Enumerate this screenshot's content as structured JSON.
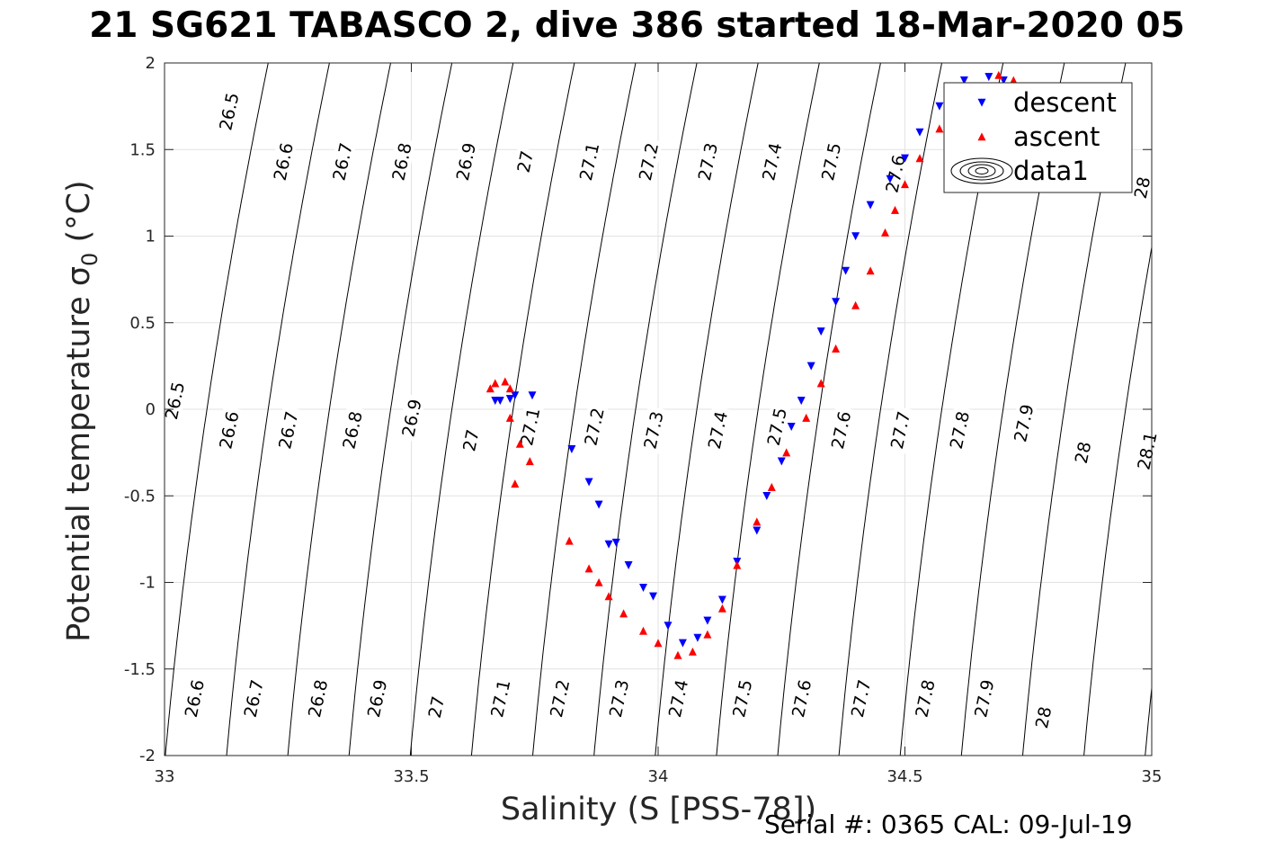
{
  "title": "21 SG621 TABASCO 2, dive 386 started 18-Mar-2020 05",
  "footer": {
    "serial": "Serial #: 0365  CAL: 09-Jul-19"
  },
  "chart_data": {
    "type": "scatter",
    "title": "21 SG621 TABASCO 2, dive 386 started 18-Mar-2020 05",
    "xlabel": "Salinity (S [PSS-78])",
    "ylabel_main": "Potential temperature ",
    "ylabel_sigma": "σ",
    "ylabel_sub": "0",
    "ylabel_unit": " (°C)",
    "xlim": [
      33,
      35
    ],
    "ylim": [
      -2,
      2
    ],
    "xticks": [
      33,
      33.5,
      34,
      34.5,
      35
    ],
    "yticks": [
      -2,
      -1.5,
      -1,
      -0.5,
      0,
      0.5,
      1,
      1.5,
      2
    ],
    "xtick_labels": [
      "33",
      "33.5",
      "34",
      "34.5",
      "35"
    ],
    "ytick_labels": [
      "-2",
      "-1.5",
      "-1",
      "-0.5",
      "0",
      "0.5",
      "1",
      "1.5",
      "2"
    ],
    "grid": true,
    "legend_position": "top-right",
    "legend": [
      {
        "label": "descent",
        "marker": "down-triangle",
        "color": "#0000ff"
      },
      {
        "label": "ascent",
        "marker": "up-triangle",
        "color": "#ff0000"
      },
      {
        "label": "data1",
        "marker": "contour",
        "color": "#000000"
      }
    ],
    "contour_levels": [
      26.5,
      26.6,
      26.7,
      26.8,
      26.9,
      27,
      27.1,
      27.2,
      27.3,
      27.4,
      27.5,
      27.6,
      27.7,
      27.8,
      27.9,
      28,
      28.1
    ],
    "contour_labels": {
      "top": [
        {
          "t": "26.5",
          "s": 33.13,
          "th": 1.72
        },
        {
          "t": "26.6",
          "s": 33.24,
          "th": 1.43
        },
        {
          "t": "26.7",
          "s": 33.36,
          "th": 1.43
        },
        {
          "t": "26.8",
          "s": 33.48,
          "th": 1.43
        },
        {
          "t": "26.9",
          "s": 33.61,
          "th": 1.43
        },
        {
          "t": "27",
          "s": 33.73,
          "th": 1.43
        },
        {
          "t": "27.1",
          "s": 33.86,
          "th": 1.43
        },
        {
          "t": "27.2",
          "s": 33.98,
          "th": 1.43
        },
        {
          "t": "27.3",
          "s": 34.1,
          "th": 1.43
        },
        {
          "t": "27.4",
          "s": 34.23,
          "th": 1.43
        },
        {
          "t": "27.5",
          "s": 34.35,
          "th": 1.43
        },
        {
          "t": "27.6",
          "s": 34.48,
          "th": 1.36
        },
        {
          "t": "28",
          "s": 34.98,
          "th": 1.28
        }
      ],
      "middle": [
        {
          "t": "26.5",
          "s": 33.02,
          "th": 0.05
        },
        {
          "t": "26.6",
          "s": 33.13,
          "th": -0.12
        },
        {
          "t": "26.7",
          "s": 33.25,
          "th": -0.12
        },
        {
          "t": "26.8",
          "s": 33.38,
          "th": -0.12
        },
        {
          "t": "26.9",
          "s": 33.5,
          "th": -0.05
        },
        {
          "t": "27",
          "s": 33.62,
          "th": -0.18
        },
        {
          "t": "27.1",
          "s": 33.74,
          "th": -0.1
        },
        {
          "t": "27.2",
          "s": 33.87,
          "th": -0.1
        },
        {
          "t": "27.3",
          "s": 33.99,
          "th": -0.12
        },
        {
          "t": "27.4",
          "s": 34.12,
          "th": -0.12
        },
        {
          "t": "27.5",
          "s": 34.24,
          "th": -0.1
        },
        {
          "t": "27.6",
          "s": 34.37,
          "th": -0.12
        },
        {
          "t": "27.7",
          "s": 34.49,
          "th": -0.12
        },
        {
          "t": "27.8",
          "s": 34.61,
          "th": -0.12
        },
        {
          "t": "27.9",
          "s": 34.74,
          "th": -0.08
        },
        {
          "t": "28",
          "s": 34.86,
          "th": -0.25
        },
        {
          "t": "28.1",
          "s": 34.99,
          "th": -0.24
        }
      ],
      "bottom": [
        {
          "t": "26.6",
          "s": 33.06,
          "th": -1.67
        },
        {
          "t": "26.7",
          "s": 33.18,
          "th": -1.67
        },
        {
          "t": "26.8",
          "s": 33.31,
          "th": -1.67
        },
        {
          "t": "26.9",
          "s": 33.43,
          "th": -1.67
        },
        {
          "t": "27",
          "s": 33.55,
          "th": -1.72
        },
        {
          "t": "27.1",
          "s": 33.68,
          "th": -1.67
        },
        {
          "t": "27.2",
          "s": 33.8,
          "th": -1.67
        },
        {
          "t": "27.3",
          "s": 33.92,
          "th": -1.67
        },
        {
          "t": "27.4",
          "s": 34.04,
          "th": -1.67
        },
        {
          "t": "27.5",
          "s": 34.17,
          "th": -1.67
        },
        {
          "t": "27.6",
          "s": 34.29,
          "th": -1.67
        },
        {
          "t": "27.7",
          "s": 34.41,
          "th": -1.67
        },
        {
          "t": "27.8",
          "s": 34.54,
          "th": -1.67
        },
        {
          "t": "27.9",
          "s": 34.66,
          "th": -1.67
        },
        {
          "t": "28",
          "s": 34.78,
          "th": -1.78
        }
      ]
    },
    "series": [
      {
        "name": "descent",
        "marker": "down-triangle",
        "color": "#0000ff",
        "points": [
          [
            33.67,
            0.05
          ],
          [
            33.68,
            0.05
          ],
          [
            33.7,
            0.06
          ],
          [
            33.71,
            0.08
          ],
          [
            33.745,
            0.08
          ],
          [
            33.825,
            -0.23
          ],
          [
            33.86,
            -0.42
          ],
          [
            33.88,
            -0.55
          ],
          [
            33.9,
            -0.78
          ],
          [
            33.915,
            -0.77
          ],
          [
            33.94,
            -0.9
          ],
          [
            33.97,
            -1.03
          ],
          [
            33.99,
            -1.08
          ],
          [
            34.02,
            -1.25
          ],
          [
            34.05,
            -1.35
          ],
          [
            34.08,
            -1.32
          ],
          [
            34.1,
            -1.22
          ],
          [
            34.13,
            -1.1
          ],
          [
            34.16,
            -0.88
          ],
          [
            34.2,
            -0.7
          ],
          [
            34.22,
            -0.5
          ],
          [
            34.25,
            -0.3
          ],
          [
            34.27,
            -0.1
          ],
          [
            34.29,
            0.05
          ],
          [
            34.31,
            0.25
          ],
          [
            34.33,
            0.45
          ],
          [
            34.36,
            0.62
          ],
          [
            34.38,
            0.8
          ],
          [
            34.4,
            1.0
          ],
          [
            34.43,
            1.18
          ],
          [
            34.47,
            1.33
          ],
          [
            34.5,
            1.45
          ],
          [
            34.53,
            1.6
          ],
          [
            34.57,
            1.75
          ],
          [
            34.62,
            1.9
          ],
          [
            34.67,
            1.92
          ],
          [
            34.7,
            1.9
          ]
        ]
      },
      {
        "name": "ascent",
        "marker": "up-triangle",
        "color": "#ff0000",
        "points": [
          [
            33.66,
            0.12
          ],
          [
            33.67,
            0.15
          ],
          [
            33.69,
            0.16
          ],
          [
            33.7,
            0.12
          ],
          [
            33.7,
            -0.05
          ],
          [
            33.72,
            -0.2
          ],
          [
            33.74,
            -0.3
          ],
          [
            33.71,
            -0.43
          ],
          [
            33.82,
            -0.76
          ],
          [
            33.86,
            -0.92
          ],
          [
            33.88,
            -1.0
          ],
          [
            33.9,
            -1.08
          ],
          [
            33.93,
            -1.18
          ],
          [
            33.97,
            -1.28
          ],
          [
            34.0,
            -1.35
          ],
          [
            34.04,
            -1.42
          ],
          [
            34.07,
            -1.4
          ],
          [
            34.1,
            -1.3
          ],
          [
            34.13,
            -1.15
          ],
          [
            34.16,
            -0.9
          ],
          [
            34.2,
            -0.65
          ],
          [
            34.23,
            -0.45
          ],
          [
            34.26,
            -0.25
          ],
          [
            34.3,
            -0.05
          ],
          [
            34.33,
            0.15
          ],
          [
            34.36,
            0.35
          ],
          [
            34.4,
            0.6
          ],
          [
            34.43,
            0.8
          ],
          [
            34.46,
            1.02
          ],
          [
            34.48,
            1.15
          ],
          [
            34.5,
            1.3
          ],
          [
            34.53,
            1.45
          ],
          [
            34.57,
            1.62
          ],
          [
            34.62,
            1.75
          ],
          [
            34.66,
            1.85
          ],
          [
            34.69,
            1.93
          ],
          [
            34.72,
            1.9
          ]
        ]
      }
    ]
  }
}
